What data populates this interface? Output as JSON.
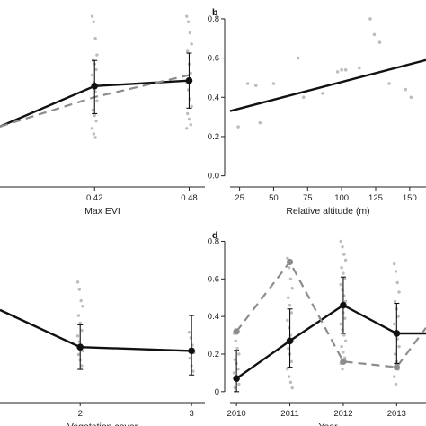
{
  "colors": {
    "model_line": "#111111",
    "raw_points": "#bdbdbd",
    "dashed_line": "#8c8c8c",
    "error_bar": "#111111",
    "axis": "#222222"
  },
  "chart_data": [
    {
      "id": "a",
      "panel_letter": "",
      "type": "line",
      "xlabel": "Max EVI",
      "ylabel": "",
      "x_ticks": [
        "0.42",
        "0.48"
      ],
      "x_tick_values": [
        0.42,
        0.48
      ],
      "y_ticks": [],
      "xlim": [
        0.36,
        0.49
      ],
      "ylim": [
        -0.08,
        0.85
      ],
      "series": [
        {
          "role": "model",
          "style": "solid",
          "x": [
            0.36,
            0.42,
            0.48
          ],
          "y": [
            0.21,
            0.43,
            0.46
          ]
        },
        {
          "role": "observed",
          "style": "dashed",
          "x": [
            0.36,
            0.42,
            0.48
          ],
          "y": [
            0.21,
            0.37,
            0.49
          ]
        }
      ],
      "error_bars": [
        {
          "x": 0.42,
          "mean": 0.43,
          "low": 0.28,
          "high": 0.57
        },
        {
          "x": 0.48,
          "mean": 0.46,
          "low": 0.31,
          "high": 0.61
        }
      ],
      "raw_points": [
        {
          "x": 0.42,
          "y": [
            0.81,
            0.78,
            0.69,
            0.6,
            0.57,
            0.55,
            0.52,
            0.49,
            0.45,
            0.4,
            0.35,
            0.3,
            0.27,
            0.24,
            0.2,
            0.17,
            0.15
          ]
        },
        {
          "x": 0.48,
          "y": [
            0.81,
            0.78,
            0.72,
            0.66,
            0.62,
            0.55,
            0.5,
            0.45,
            0.41,
            0.36,
            0.32,
            0.28,
            0.25,
            0.22,
            0.2
          ]
        }
      ]
    },
    {
      "id": "b",
      "panel_letter": "b",
      "type": "scatter",
      "xlabel": "Relative altitude (m)",
      "ylabel": "",
      "x_ticks": [
        "25",
        "50",
        "75",
        "100",
        "125",
        "150"
      ],
      "x_tick_values": [
        25,
        50,
        75,
        100,
        125,
        150
      ],
      "y_ticks": [
        "0.0",
        "0.2",
        "0.4",
        "0.6",
        "0.8"
      ],
      "y_tick_values": [
        0,
        0.2,
        0.4,
        0.6,
        0.8
      ],
      "xlim": [
        18,
        162
      ],
      "ylim": [
        -0.02,
        0.85
      ],
      "fit_line": {
        "x": [
          18,
          162
        ],
        "y": [
          0.33,
          0.59
        ]
      },
      "points": [
        {
          "x": 24,
          "y": 0.25
        },
        {
          "x": 31,
          "y": 0.47
        },
        {
          "x": 37,
          "y": 0.46
        },
        {
          "x": 40,
          "y": 0.27
        },
        {
          "x": 50,
          "y": 0.47
        },
        {
          "x": 68,
          "y": 0.6
        },
        {
          "x": 72,
          "y": 0.4
        },
        {
          "x": 86,
          "y": 0.42
        },
        {
          "x": 97,
          "y": 0.53
        },
        {
          "x": 100,
          "y": 0.54
        },
        {
          "x": 103,
          "y": 0.54
        },
        {
          "x": 113,
          "y": 0.55
        },
        {
          "x": 121,
          "y": 0.8
        },
        {
          "x": 124,
          "y": 0.72
        },
        {
          "x": 128,
          "y": 0.68
        },
        {
          "x": 135,
          "y": 0.47
        },
        {
          "x": 147,
          "y": 0.44
        },
        {
          "x": 151,
          "y": 0.4
        }
      ]
    },
    {
      "id": "c",
      "panel_letter": "",
      "type": "line",
      "xlabel": "Vegetation cover",
      "ylabel": "",
      "x_ticks": [
        "2",
        "3"
      ],
      "x_tick_values": [
        2,
        3
      ],
      "y_ticks": [],
      "xlim": [
        1.28,
        3.12
      ],
      "ylim": [
        -0.03,
        0.85
      ],
      "series": [
        {
          "role": "model",
          "style": "solid",
          "x": [
            1.28,
            2,
            3
          ],
          "y": [
            0.43,
            0.23,
            0.21
          ]
        }
      ],
      "error_bars": [
        {
          "x": 2,
          "mean": 0.23,
          "low": 0.11,
          "high": 0.35
        },
        {
          "x": 3,
          "mean": 0.21,
          "low": 0.08,
          "high": 0.4
        }
      ],
      "raw_points": [
        {
          "x": 2,
          "y": [
            0.58,
            0.54,
            0.48,
            0.45,
            0.4,
            0.36,
            0.32,
            0.29,
            0.26,
            0.24,
            0.21,
            0.19,
            0.16,
            0.13
          ]
        },
        {
          "x": 3,
          "y": [
            0.31,
            0.28,
            0.24,
            0.2,
            0.17,
            0.13,
            0.1
          ]
        }
      ]
    },
    {
      "id": "d",
      "panel_letter": "d",
      "type": "line",
      "xlabel": "Year",
      "ylabel": "",
      "x_ticks": [
        "2010",
        "2011",
        "2012",
        "2013"
      ],
      "x_tick_values": [
        2010,
        2011,
        2012,
        2013
      ],
      "y_ticks": [
        "0",
        "0.2",
        "0.4",
        "0.6",
        "0.8"
      ],
      "y_tick_values": [
        0,
        0.2,
        0.4,
        0.6,
        0.8
      ],
      "xlim": [
        2009.88,
        2013.55
      ],
      "ylim": [
        -0.02,
        0.85
      ],
      "series": [
        {
          "role": "model",
          "style": "solid",
          "x": [
            2010,
            2011,
            2012,
            2013,
            2013.55
          ],
          "y": [
            0.07,
            0.27,
            0.46,
            0.31,
            0.31
          ]
        },
        {
          "role": "observed",
          "style": "dashed",
          "x": [
            2010,
            2011,
            2012,
            2013,
            2013.55
          ],
          "y": [
            0.32,
            0.69,
            0.16,
            0.13,
            0.34
          ]
        }
      ],
      "observed_markers": [
        {
          "x": 2010,
          "y": 0.32
        },
        {
          "x": 2011,
          "y": 0.69
        },
        {
          "x": 2012,
          "y": 0.16
        },
        {
          "x": 2013,
          "y": 0.13
        }
      ],
      "error_bars": [
        {
          "x": 2010,
          "mean": 0.07,
          "low": 0.0,
          "high": 0.22
        },
        {
          "x": 2011,
          "mean": 0.27,
          "low": 0.13,
          "high": 0.44
        },
        {
          "x": 2012,
          "mean": 0.46,
          "low": 0.31,
          "high": 0.61
        },
        {
          "x": 2013,
          "mean": 0.31,
          "low": 0.15,
          "high": 0.47
        }
      ],
      "raw_points": [
        {
          "x": 2010,
          "y": [
            0.31,
            0.27,
            0.23,
            0.2,
            0.17,
            0.15,
            0.12,
            0.1,
            0.08,
            0.06,
            0.04,
            0.02
          ]
        },
        {
          "x": 2011,
          "y": [
            0.71,
            0.66,
            0.6,
            0.55,
            0.5,
            0.46,
            0.42,
            0.38,
            0.34,
            0.3,
            0.27,
            0.23,
            0.2,
            0.16,
            0.12,
            0.08,
            0.05,
            0.02
          ]
        },
        {
          "x": 2012,
          "y": [
            0.8,
            0.77,
            0.73,
            0.7,
            0.66,
            0.63,
            0.6,
            0.57,
            0.54,
            0.51,
            0.48,
            0.45,
            0.42,
            0.39,
            0.36,
            0.33,
            0.3,
            0.27,
            0.24,
            0.21,
            0.18,
            0.15,
            0.12
          ]
        },
        {
          "x": 2013,
          "y": [
            0.68,
            0.64,
            0.58,
            0.53,
            0.48,
            0.44,
            0.4,
            0.36,
            0.32,
            0.28,
            0.24,
            0.2,
            0.16,
            0.12,
            0.08,
            0.04
          ]
        }
      ]
    }
  ]
}
